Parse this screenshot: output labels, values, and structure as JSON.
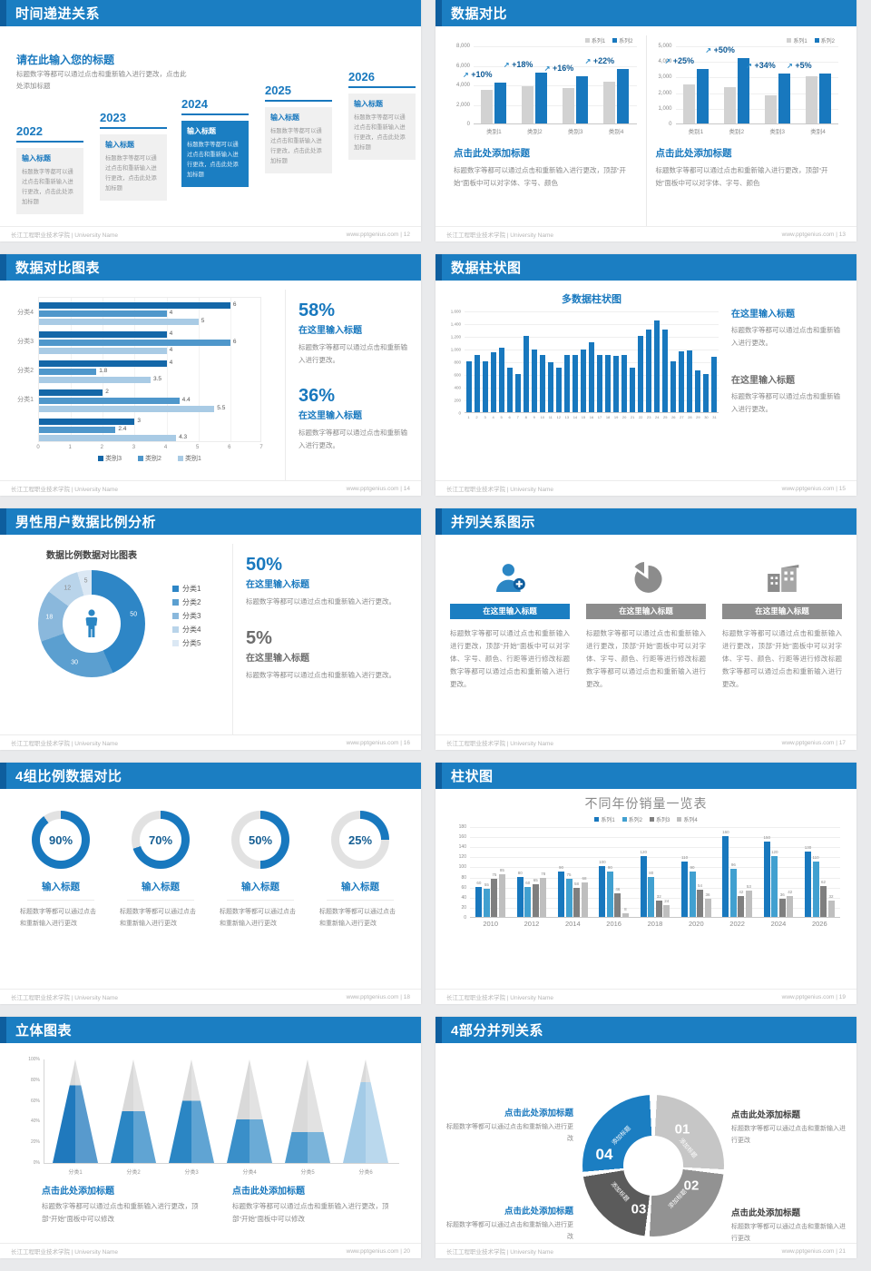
{
  "theme": {
    "accent": "#1b7ec2",
    "accent_dark": "#0e5e9e",
    "bar_blue": "#1878be",
    "gray_text": "#8a8a8a",
    "light_bar": "#d2d2d2"
  },
  "footer": {
    "school": "长江工程职业技术学院 | University Name",
    "site": "www.pptgenius.com",
    "sep": " | "
  },
  "slides": {
    "s1": {
      "title": "时间递进关系",
      "page": "12",
      "heading": "请在此输入您的标题",
      "subtext": "标题数字等都可以通过点击和重新输入进行更改，点击此处添加标题",
      "items": [
        {
          "year": "2022",
          "label": "输入标题",
          "body": "标题数字等都可以通过点击和重新输入进行更改，点击此处添加标题"
        },
        {
          "year": "2023",
          "label": "输入标题",
          "body": "标题数字等都可以通过点击和重新输入进行更改，点击此处添加标题"
        },
        {
          "year": "2024",
          "label": "输入标题",
          "body": "标题数字等都可以通过点击和重新输入进行更改，点击此处添加标题"
        },
        {
          "year": "2025",
          "label": "输入标题",
          "body": "标题数字等都可以通过点击和重新输入进行更改，点击此处添加标题"
        },
        {
          "year": "2026",
          "label": "输入标题",
          "body": "标题数字等都可以通过点击和重新输入进行更改，点击此处添加标题"
        }
      ]
    },
    "s2": {
      "title": "数据对比",
      "page": "13",
      "blocks": [
        {
          "heading": "点击此处添加标题",
          "body": "标题数字等都可以通过点击和重新输入进行更改，顶部“开始”面板中可以对字体、字号、颜色"
        },
        {
          "heading": "点击此处添加标题",
          "body": "标题数字等都可以通过点击和重新输入进行更改，顶部“开始”面板中可以对字体、字号、颜色"
        }
      ]
    },
    "s3": {
      "title": "数据对比图表",
      "page": "14",
      "stats": [
        {
          "pct": "58%",
          "label": "在这里输入标题",
          "body": "标题数字等都可以通过点击和重新输入进行更改。"
        },
        {
          "pct": "36%",
          "label": "在这里输入标题",
          "body": "标题数字等都可以通过点击和重新输入进行更改。"
        }
      ]
    },
    "s4": {
      "title": "数据柱状图",
      "page": "15",
      "blocks": [
        {
          "label": "在这里输入标题",
          "body": "标题数字等都可以通过点击和重新输入进行更改。"
        },
        {
          "label": "在这里输入标题",
          "body": "标题数字等都可以通过点击和重新输入进行更改。"
        }
      ]
    },
    "s5": {
      "title": "男性用户数据比例分析",
      "page": "16",
      "stats": [
        {
          "pct": "50%",
          "label": "在这里输入标题",
          "body": "标题数字等都可以通过点击和重新输入进行更改。"
        },
        {
          "pct": "5%",
          "label": "在这里输入标题",
          "body": "标题数字等都可以通过点击和重新输入进行更改。"
        }
      ]
    },
    "s6": {
      "title": "并列关系图示",
      "page": "17",
      "cols": [
        {
          "icon": "nurse-add-icon",
          "label": "在这里输入标题",
          "body": "标题数字等都可以通过点击和重新输入进行更改，顶部“开始”面板中可以对字体、字号、颜色、行距等进行修改标题数字等都可以通过点击和重新输入进行更改。"
        },
        {
          "icon": "pie-chart-icon",
          "label": "在这里输入标题",
          "body": "标题数字等都可以通过点击和重新输入进行更改，顶部“开始”面板中可以对字体、字号、颜色、行距等进行修改标题数字等都可以通过点击和重新输入进行更改。"
        },
        {
          "icon": "building-icon",
          "label": "在这里输入标题",
          "body": "标题数字等都可以通过点击和重新输入进行更改，顶部“开始”面板中可以对字体、字号、颜色、行距等进行修改标题数字等都可以通过点击和重新输入进行更改。"
        }
      ]
    },
    "s7": {
      "title": "4组比例数据对比",
      "page": "18",
      "items": [
        {
          "label": "输入标题",
          "body": "标题数字等都可以通过点击和重新输入进行更改"
        },
        {
          "label": "输入标题",
          "body": "标题数字等都可以通过点击和重新输入进行更改"
        },
        {
          "label": "输入标题",
          "body": "标题数字等都可以通过点击和重新输入进行更改"
        },
        {
          "label": "输入标题",
          "body": "标题数字等都可以通过点击和重新输入进行更改"
        }
      ]
    },
    "s8": {
      "title": "柱状图",
      "page": "19"
    },
    "s9": {
      "title": "立体图表",
      "page": "20",
      "blocks": [
        {
          "heading": "点击此处添加标题",
          "body": "标题数字等都可以通过点击和重新输入进行更改，顶部“开始”面板中可以修改"
        },
        {
          "heading": "点击此处添加标题",
          "body": "标题数字等都可以通过点击和重新输入进行更改，顶部“开始”面板中可以修改"
        }
      ]
    },
    "s10": {
      "title": "4部分并列关系",
      "page": "21",
      "blocks": [
        {
          "heading": "点击此处添加标题",
          "body": "标题数字等都可以通过点击和重新输入进行更改"
        },
        {
          "heading": "点击此处添加标题",
          "body": "标题数字等都可以通过点击和重新输入进行更改"
        },
        {
          "heading": "点击此处添加标题",
          "body": "标题数字等都可以通过点击和重新输入进行更改"
        },
        {
          "heading": "点击此处添加标题",
          "body": "标题数字等都可以通过点击和重新输入进行更改"
        }
      ]
    }
  },
  "chart_data": [
    {
      "id": "cmp1",
      "type": "bar",
      "title": "",
      "categories": [
        "类别1",
        "类别2",
        "类别3",
        "类别4"
      ],
      "series": [
        {
          "name": "系列1",
          "color": "#d2d2d2",
          "values": [
            3400,
            3800,
            3650,
            4300
          ]
        },
        {
          "name": "系列2",
          "color": "#1878be",
          "values": [
            4200,
            5250,
            4800,
            5600
          ]
        }
      ],
      "annotations": [
        "+10%",
        "+18%",
        "+16%",
        "+22%"
      ],
      "ylim": [
        0,
        8000
      ],
      "yticks": [
        "0",
        "2,000",
        "4,000",
        "6,000",
        "8,000"
      ],
      "grid": true,
      "legend_position": "top-right"
    },
    {
      "id": "cmp2",
      "type": "bar",
      "title": "",
      "categories": [
        "类别1",
        "类别2",
        "类别3",
        "类别4"
      ],
      "series": [
        {
          "name": "系列1",
          "color": "#d2d2d2",
          "values": [
            2500,
            2300,
            1800,
            3000
          ]
        },
        {
          "name": "系列2",
          "color": "#1878be",
          "values": [
            3500,
            4200,
            3200,
            3200
          ]
        }
      ],
      "annotations": [
        "+25%",
        "+50%",
        "+34%",
        "+5%"
      ],
      "ylim": [
        0,
        5000
      ],
      "yticks": [
        "0",
        "1,000",
        "2,000",
        "3,000",
        "4,000",
        "5,000"
      ],
      "grid": true,
      "legend_position": "top-right"
    },
    {
      "id": "hbar",
      "type": "bar",
      "orientation": "horizontal",
      "title": "",
      "groups": [
        "分类4",
        "分类3",
        "分类2",
        "分类1",
        ""
      ],
      "series": [
        {
          "name": "类别3",
          "color": "#1467a8",
          "values": [
            6,
            4,
            4,
            2,
            3
          ]
        },
        {
          "name": "类别2",
          "color": "#4f97cb",
          "values": [
            4,
            6,
            1.8,
            4.4,
            2.4
          ]
        },
        {
          "name": "类别1",
          "color": "#a9cbe5",
          "values": [
            5,
            4,
            3.5,
            5.5,
            4.3
          ]
        }
      ],
      "xlim": [
        0,
        7
      ],
      "xticks": [
        "0",
        "1",
        "2",
        "3",
        "4",
        "5",
        "6",
        "7"
      ],
      "legend_position": "bottom"
    },
    {
      "id": "multi",
      "type": "bar",
      "title": "多数据柱状图",
      "categories": [
        "1",
        "2",
        "3",
        "4",
        "5",
        "6",
        "7",
        "8",
        "9",
        "10",
        "11",
        "12",
        "13",
        "14",
        "15",
        "16",
        "17",
        "18",
        "19",
        "20",
        "21",
        "22",
        "23",
        "24",
        "25",
        "26",
        "27",
        "28",
        "29",
        "30",
        "31"
      ],
      "series": [
        {
          "name": "数据",
          "color": "#1878be",
          "values": [
            800,
            900,
            800,
            950,
            1020,
            700,
            600,
            1200,
            980,
            900,
            780,
            700,
            900,
            900,
            990,
            1100,
            900,
            900,
            880,
            900,
            700,
            1200,
            1300,
            1450,
            1300,
            800,
            960,
            970,
            660,
            600,
            870
          ]
        }
      ],
      "ylim": [
        0,
        1600
      ],
      "yticks": [
        "0",
        "200",
        "400",
        "600",
        "800",
        "1,000",
        "1,200",
        "1,400",
        "1,600"
      ],
      "grid": true
    },
    {
      "id": "donut",
      "type": "pie",
      "title": "数据比例数据对比图表",
      "labels": [
        "分类1",
        "分类2",
        "分类3",
        "分类4",
        "分类5"
      ],
      "values": [
        50,
        30,
        18,
        12,
        5
      ],
      "colors": [
        "#2e86c6",
        "#5b9fd0",
        "#8ab8dc",
        "#b9d4ea",
        "#dbe8f4"
      ],
      "legend_position": "right"
    },
    {
      "id": "rings",
      "type": "donut-progress",
      "values": [
        90,
        70,
        50,
        25
      ],
      "color": "#1878be",
      "track": "#e2e2e2"
    },
    {
      "id": "years",
      "type": "bar",
      "title": "不同年份销量一览表",
      "categories": [
        "2010",
        "2012",
        "2014",
        "2016",
        "2018",
        "2020",
        "2022",
        "2024",
        "2026"
      ],
      "series": [
        {
          "name": "系列1",
          "color": "#1878be",
          "values": [
            60,
            80,
            90,
            100,
            120,
            110,
            160,
            150,
            130
          ]
        },
        {
          "name": "系列2",
          "color": "#41a0d0",
          "values": [
            55,
            60,
            75,
            90,
            80,
            90,
            96,
            120,
            110
          ]
        },
        {
          "name": "系列3",
          "color": "#7f7f7f",
          "values": [
            75,
            65,
            58,
            46,
            32,
            54,
            42,
            36,
            62
          ]
        },
        {
          "name": "系列4",
          "color": "#bfbfbf",
          "values": [
            85,
            78,
            68,
            8,
            24,
            36,
            53,
            42,
            32
          ]
        }
      ],
      "ylim": [
        0,
        180
      ],
      "yticks": [
        "0",
        "20",
        "40",
        "60",
        "80",
        "100",
        "120",
        "140",
        "160",
        "180"
      ],
      "data_labels": true,
      "legend_position": "top",
      "grid": true
    },
    {
      "id": "pyramid",
      "type": "pyramid",
      "title": "",
      "categories": [
        "分类1",
        "分类2",
        "分类3",
        "分类4",
        "分类5",
        "分类6"
      ],
      "values": [
        75,
        50,
        60,
        42,
        30,
        78
      ],
      "colors": [
        "#2079bd",
        "#2b86c4",
        "#2b86c4",
        "#3a8fc9",
        "#4f9bce",
        "#a3cbe7"
      ],
      "yticks": [
        "0%",
        "20%",
        "40%",
        "60%",
        "80%",
        "100%"
      ]
    },
    {
      "id": "cycle",
      "type": "donut-diagram",
      "segments": [
        {
          "num": "01",
          "label": "添加标题",
          "color": "#c6c6c6"
        },
        {
          "num": "02",
          "label": "添加标题",
          "color": "#929292"
        },
        {
          "num": "03",
          "label": "添加标题",
          "color": "#5b5b5b"
        },
        {
          "num": "04",
          "label": "添加标题",
          "color": "#1b7ec2"
        }
      ]
    }
  ]
}
